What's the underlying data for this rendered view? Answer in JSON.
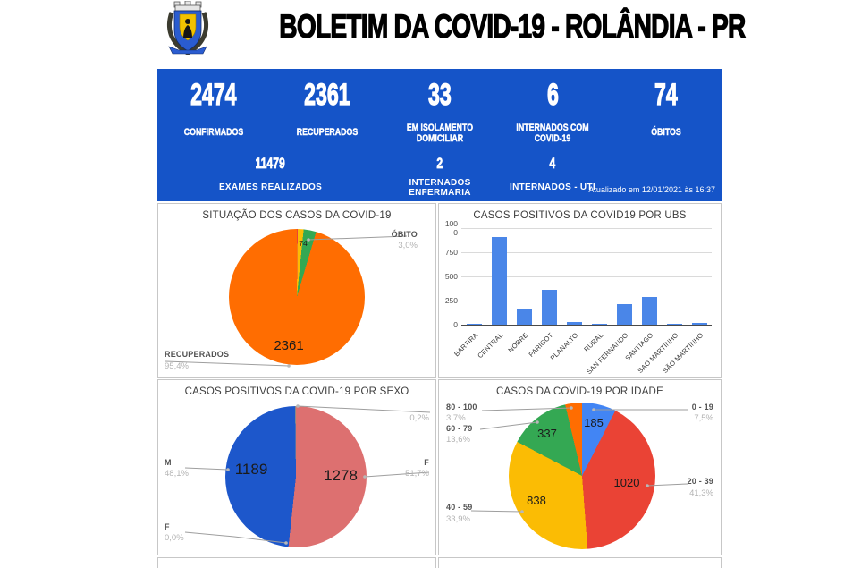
{
  "header": {
    "title": "BOLETIM DA COVID-19 - ROLÂNDIA - PR",
    "logo": "rolandia-coat-of-arms"
  },
  "stats": {
    "background_color": "#1554c8",
    "cards": [
      {
        "value": "2474",
        "label": "CONFIRMADOS"
      },
      {
        "value": "2361",
        "label": "RECUPERADOS"
      },
      {
        "value": "33",
        "label": "EM ISOLAMENTO DOMICILIAR"
      },
      {
        "value": "6",
        "label": "INTERNADOS COM COVID-19"
      },
      {
        "value": "74",
        "label": "ÓBITOS"
      }
    ],
    "secondary": [
      {
        "value": "11479",
        "label": "EXAMES REALIZADOS"
      },
      {
        "value": "2",
        "label": "INTERNADOS ENFERMARIA"
      },
      {
        "value": "4",
        "label": "INTERNADOS - UTI"
      }
    ],
    "updated": "Atualizado em 12/01/2021 às 16:37"
  },
  "chart_data": [
    {
      "id": "situacao",
      "type": "pie",
      "title": "SITUAÇÃO DOS CASOS DA COVID-19",
      "legend_position": "callouts",
      "segments": [
        {
          "label": "",
          "pct": 0.2,
          "pct_text": "",
          "color": "#ea4335"
        },
        {
          "label": "",
          "pct": 1.4,
          "pct_text": "",
          "color": "#fbbc04"
        },
        {
          "label": "ÓBITO",
          "value": 74,
          "pct": 3.0,
          "pct_text": "3,0%",
          "color": "#34a853"
        },
        {
          "label": "RECUPERADOS",
          "value": 2361,
          "pct": 95.4,
          "pct_text": "95,4%",
          "color": "#ff6d01"
        }
      ]
    },
    {
      "id": "ubs",
      "type": "bar",
      "title": "CASOS POSITIVOS DA COVID19 POR UBS",
      "categories": [
        "BARTIRA",
        "CENTRAL",
        "NOBRE",
        "PARIGOT",
        "PLANALTO",
        "RURAL",
        "SAN FERNANDO",
        "SANTIAGO",
        "SAO MARTINHO",
        "SÃO MARTINHO"
      ],
      "values": [
        10,
        905,
        160,
        360,
        25,
        5,
        212,
        288,
        5,
        20
      ],
      "ylim": [
        0,
        1000
      ],
      "yticks": [
        0,
        250,
        500,
        750,
        1000
      ],
      "ytick_labels": [
        "0",
        "250",
        "500",
        "750",
        "100\n0"
      ],
      "grid": true,
      "bar_color": "#4a86e8"
    },
    {
      "id": "sexo",
      "type": "pie",
      "title": "CASOS POSITIVOS DA COVID-19 POR SEXO",
      "legend_position": "callouts",
      "segments": [
        {
          "label": "F",
          "value": 1278,
          "pct": 51.7,
          "pct_text": "51,7%",
          "color": "#dd7070"
        },
        {
          "label": "F",
          "pct": 0.0,
          "pct_text": "0,0%",
          "color": "#999999"
        },
        {
          "label": "M",
          "value": 1189,
          "pct": 48.1,
          "pct_text": "48,1%",
          "color": "#1d57cb"
        },
        {
          "label": "",
          "pct": 0.2,
          "pct_text": "0,2%",
          "color": "#888888"
        }
      ]
    },
    {
      "id": "idade",
      "type": "pie",
      "title": "CASOS DA COVID-19 POR IDADE",
      "legend_position": "callouts",
      "segments": [
        {
          "label": "0 - 19",
          "value": 185,
          "pct": 7.5,
          "pct_text": "7,5%",
          "color": "#4285f4"
        },
        {
          "label": "20 - 39",
          "value": 1020,
          "pct": 41.3,
          "pct_text": "41,3%",
          "color": "#ea4335"
        },
        {
          "label": "40 - 59",
          "value": 838,
          "pct": 33.9,
          "pct_text": "33,9%",
          "color": "#fbbc04"
        },
        {
          "label": "60 - 79",
          "value": 337,
          "pct": 13.6,
          "pct_text": "13,6%",
          "color": "#34a853"
        },
        {
          "label": "80 - 100",
          "pct": 3.7,
          "pct_text": "3,7%",
          "color": "#ff6d01"
        }
      ]
    }
  ]
}
